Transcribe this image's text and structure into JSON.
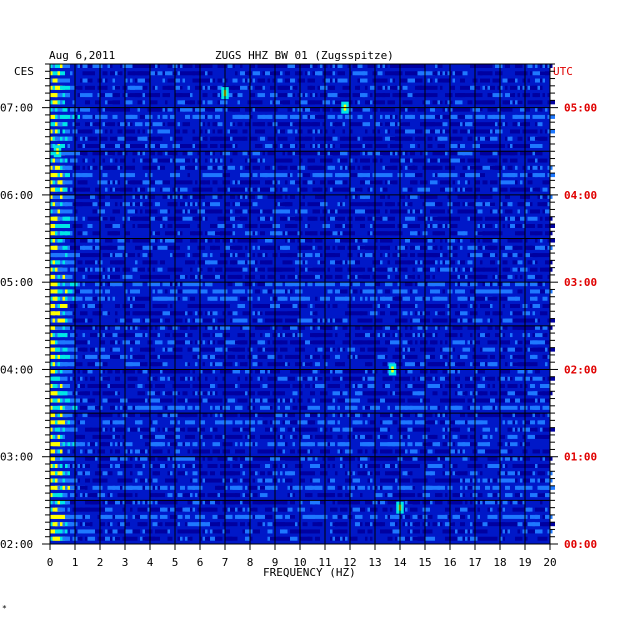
{
  "chart_data": {
    "type": "heatmap",
    "date": "Aug 6,2011",
    "title": "ZUGS HHZ BW 01 (Zugsspitze)",
    "xlabel": "FREQUENCY (HZ)",
    "xlim": [
      0,
      20
    ],
    "x_ticks": [
      "0",
      "1",
      "2",
      "3",
      "4",
      "5",
      "6",
      "7",
      "8",
      "9",
      "10",
      "11",
      "12",
      "13",
      "14",
      "15",
      "16",
      "17",
      "18",
      "19",
      "20"
    ],
    "left_axis_label": "CES",
    "right_axis_label": "UTC",
    "left_time_ticks": [
      "07:00",
      "06:00",
      "05:00",
      "04:00",
      "03:00",
      "02:00"
    ],
    "right_time_ticks": [
      "05:00",
      "04:00",
      "03:00",
      "02:00",
      "01:00",
      "00:00"
    ],
    "time_range_ces": [
      "02:00",
      "07:30"
    ],
    "rows_per_hour": 12,
    "grid": true,
    "colors": {
      "background_blue": "#0018c8",
      "low": "#0000a0",
      "mid": "#1e78ff",
      "high": "#00e6e6",
      "peak": "#ffff00",
      "grid": "#000000",
      "utc_label": "#e00000"
    },
    "notable_features": [
      {
        "frequency_hz": 14.0,
        "time_ces": "02:25",
        "intensity": "high"
      },
      {
        "frequency_hz": 13.7,
        "time_ces": "04:00",
        "intensity": "high"
      },
      {
        "frequency_hz": 7.0,
        "time_ces": "07:10",
        "intensity": "high"
      },
      {
        "frequency_hz": 11.8,
        "time_ces": "07:00",
        "intensity": "high"
      },
      {
        "frequency_hz": 0.3,
        "time_ces": "06:30",
        "intensity": "high"
      }
    ]
  },
  "corner_mark": "*"
}
